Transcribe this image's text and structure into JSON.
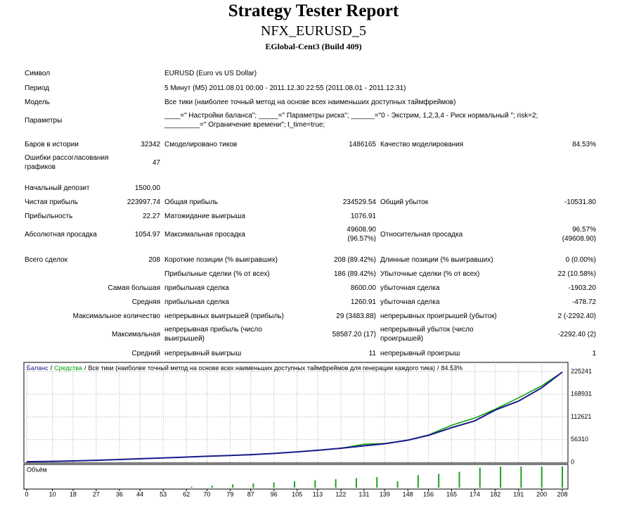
{
  "header": {
    "title": "Strategy Tester Report",
    "subtitle": "NFX_EURUSD_5",
    "server": "EGlobal-Cent3 (Build 409)"
  },
  "report": {
    "rows": [
      {
        "l": "Символ",
        "text": "EURUSD (Euro vs US Dollar)"
      },
      {
        "l": "Период",
        "text": "5 Минут (M5) 2011.08.01 00:00 - 2011.12.30 22:55 (2011.08.01 - 2011.12.31)"
      },
      {
        "l": "Модель",
        "text": "Все тики (наиболее точный метод на основе всех наименьших доступных таймфреймов)"
      },
      {
        "l": "Параметры",
        "text": "____=\" Настройки баланса\"; _____=\" Параметры риска\"; ______=\"0 - Экстрим, 1,2,3,4 - Риск нормальный \"; risk=2;\n_________=\" Ограничение времени\"; t_time=true;"
      },
      {
        "l": "Баров в истории",
        "v": "32342",
        "l2": "Смоделировано тиков",
        "v2": "1486165",
        "l3": "Качество моделирования",
        "v3": "84.53%"
      },
      {
        "l": "Ошибки рассогласования графиков",
        "v": "47"
      },
      {
        "l": "Начальный депозит",
        "v": "1500.00"
      },
      {
        "l": "Чистая прибыль",
        "v": "223997.74",
        "l2": "Общая прибыль",
        "v2": "234529.54",
        "l3": "Общий убыток",
        "v3": "-10531.80"
      },
      {
        "l": "Прибыльность",
        "v": "22.27",
        "l2": "Матожидание выигрыша",
        "v2": "1076.91"
      },
      {
        "l": "Абсолютная просадка",
        "v": "1054.97",
        "l2": "Максимальная просадка",
        "v2": "49608.90\n(96.57%)",
        "l3": "Относительная просадка",
        "v3": "96.57%\n(49608.90)"
      },
      {
        "l": "Всего сделок",
        "v": "208",
        "l2": "Короткие позиции (% выигравших)",
        "v2": "208 (89.42%)",
        "l3": "Длинные позиции (% выигравших)",
        "v3": "0 (0.00%)"
      },
      {
        "l2": "Прибыльные сделки (% от всех)",
        "v2": "186 (89.42%)",
        "l3": "Убыточные сделки (% от всех)",
        "v3": "22 (10.58%)"
      },
      {
        "l": "Самая большая",
        "l2": "прибыльная сделка",
        "v2": "8600.00",
        "l3": "убыточная сделка",
        "v3": "-1903.20"
      },
      {
        "l": "Средняя",
        "l2": "прибыльная сделка",
        "v2": "1260.91",
        "l3": "убыточная сделка",
        "v3": "-478.72"
      },
      {
        "l": "Максимальное количество",
        "l2": "непрерывных выигрышей (прибыль)",
        "v2": "29 (3483.88)",
        "l3": "непрерывных проигрышей (убыток)",
        "v3": "2 (-2292.40)"
      },
      {
        "l": "Максимальная",
        "l2": "непрерывная прибыль (число выигрышей)",
        "v2": "58587.20 (17)",
        "l3": "непрерывный убыток (число проигрышей)",
        "v3": "-2292.40 (2)"
      },
      {
        "l": "Средний",
        "l2": "непрерывный выигрыш",
        "v2": "11",
        "l3": "непрерывный проигрыш",
        "v3": "1"
      }
    ]
  },
  "chart_data": {
    "type": "line",
    "separator": "/",
    "subtitle": "Все тики (наиболее точный метод на основе всех наименьших доступных таймфреймов для генерации каждого тика)",
    "quality": "84.53%",
    "x": [
      0,
      10,
      18,
      27,
      36,
      44,
      53,
      62,
      70,
      79,
      87,
      96,
      105,
      113,
      122,
      131,
      139,
      148,
      156,
      165,
      174,
      182,
      191,
      200,
      208
    ],
    "series": [
      {
        "name": "Средства",
        "color": "#00a000",
        "values": [
          1500,
          2500,
          3500,
          5000,
          7000,
          9000,
          11000,
          13000,
          15000,
          17000,
          19000,
          22000,
          26000,
          30000,
          35000,
          45000,
          47000,
          55000,
          68000,
          92000,
          110000,
          132000,
          160000,
          190000,
          223998
        ]
      },
      {
        "name": "Баланс",
        "color": "#1a1a8c",
        "values": [
          1500,
          2500,
          3500,
          5000,
          7000,
          9000,
          11000,
          13000,
          15000,
          17000,
          19000,
          22000,
          26000,
          30000,
          35000,
          41000,
          46000,
          55000,
          67000,
          86000,
          103000,
          130000,
          152000,
          185000,
          223998
        ]
      }
    ],
    "xlim": [
      0,
      208
    ],
    "xticks": [
      0,
      10,
      18,
      27,
      36,
      44,
      53,
      62,
      70,
      79,
      87,
      96,
      105,
      113,
      122,
      131,
      139,
      148,
      156,
      165,
      174,
      182,
      191,
      200,
      208
    ],
    "ylim": [
      0,
      248000
    ],
    "yticks": [
      0,
      56310,
      112621,
      168931,
      225241
    ],
    "grid": true,
    "volume": {
      "name": "Объём",
      "color": "#22a022",
      "ylim": [
        0,
        1
      ],
      "x": [
        0,
        8,
        16,
        24,
        32,
        40,
        48,
        56,
        64,
        72,
        80,
        88,
        96,
        104,
        112,
        120,
        128,
        136,
        144,
        152,
        160,
        168,
        176,
        184,
        192,
        200,
        208
      ],
      "values": [
        0,
        0,
        0,
        0,
        0,
        0,
        0,
        0,
        0.05,
        0.1,
        0.15,
        0.2,
        0.25,
        0.3,
        0.35,
        0.4,
        0.45,
        0.5,
        0.3,
        0.6,
        0.65,
        0.75,
        0.95,
        1,
        1,
        1,
        1
      ]
    }
  }
}
